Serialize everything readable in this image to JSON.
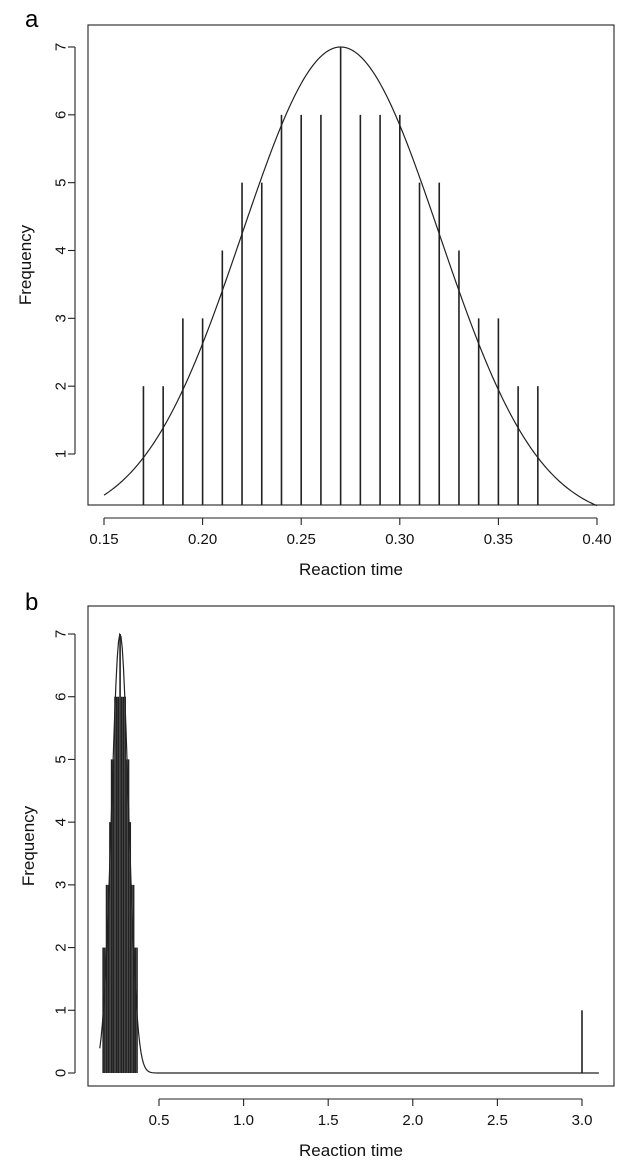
{
  "chart_data": [
    {
      "panel": "a",
      "type": "bar",
      "xlabel": "Reaction time",
      "ylabel": "Frequency",
      "xlim": [
        0.15,
        0.4
      ],
      "ylim": [
        1,
        7
      ],
      "xticks": [
        "0.15",
        "0.20",
        "0.25",
        "0.30",
        "0.35",
        "0.40"
      ],
      "yticks": [
        "1",
        "2",
        "3",
        "4",
        "5",
        "6",
        "7"
      ],
      "x": [
        0.17,
        0.18,
        0.19,
        0.2,
        0.21,
        0.22,
        0.23,
        0.24,
        0.25,
        0.26,
        0.27,
        0.28,
        0.29,
        0.3,
        0.31,
        0.32,
        0.33,
        0.34,
        0.35,
        0.36,
        0.37
      ],
      "values": [
        2,
        2,
        3,
        3,
        4,
        5,
        5,
        6,
        6,
        6,
        7,
        6,
        6,
        6,
        5,
        5,
        4,
        3,
        3,
        2,
        2
      ],
      "curve": {
        "type": "normal",
        "mean": 0.27,
        "sd": 0.05,
        "peak": 7
      },
      "grid": false
    },
    {
      "panel": "b",
      "type": "bar",
      "xlabel": "Reaction time",
      "ylabel": "Frequency",
      "xlim": [
        0.0,
        3.0
      ],
      "ylim": [
        0,
        7
      ],
      "xticks": [
        "0.5",
        "1.0",
        "1.5",
        "2.0",
        "2.5",
        "3.0"
      ],
      "yticks": [
        "0",
        "1",
        "2",
        "3",
        "4",
        "5",
        "6",
        "7"
      ],
      "x": [
        0.17,
        0.18,
        0.19,
        0.2,
        0.21,
        0.22,
        0.23,
        0.24,
        0.25,
        0.26,
        0.27,
        0.28,
        0.29,
        0.3,
        0.31,
        0.32,
        0.33,
        0.34,
        0.35,
        0.36,
        0.37,
        3.0
      ],
      "values": [
        2,
        2,
        3,
        3,
        4,
        5,
        5,
        6,
        6,
        6,
        7,
        6,
        6,
        6,
        5,
        5,
        4,
        3,
        3,
        2,
        2,
        1
      ],
      "curve": {
        "type": "normal",
        "mean": 0.27,
        "sd": 0.05,
        "peak": 7
      },
      "grid": false
    }
  ]
}
